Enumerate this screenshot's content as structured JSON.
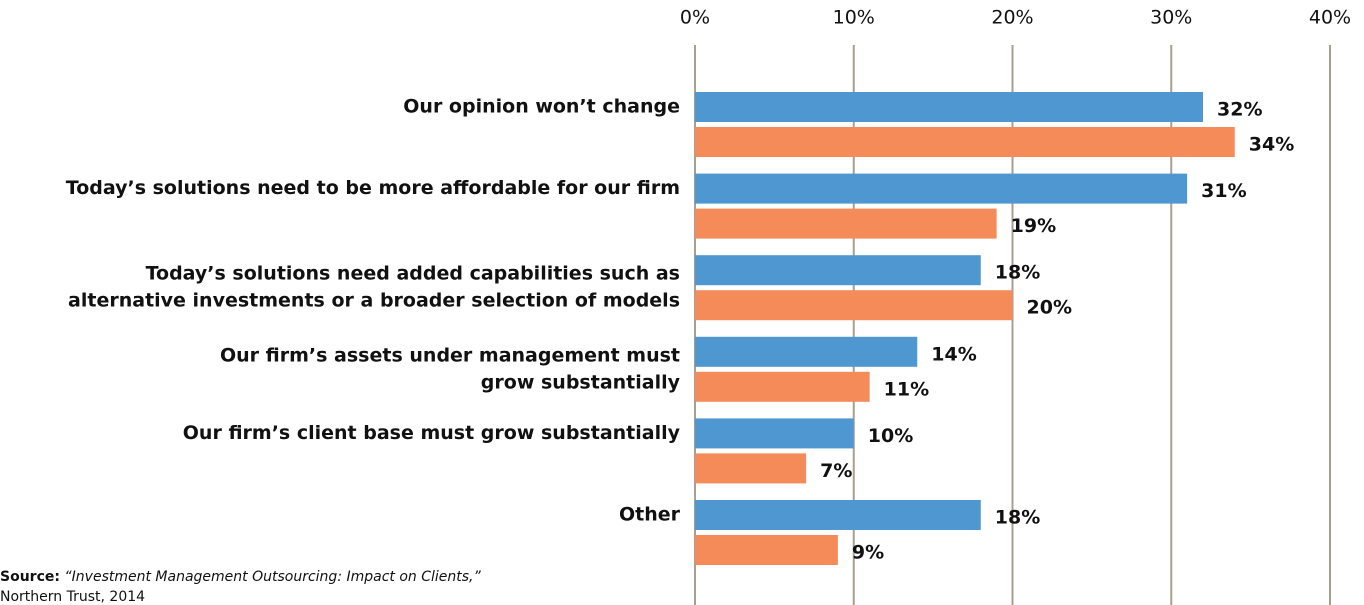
{
  "chart_data": {
    "type": "bar",
    "orientation": "horizontal",
    "categories": [
      [
        "Our opinion won’t change"
      ],
      [
        "Today’s solutions need to be more affordable for our firm"
      ],
      [
        "Today’s solutions need added capabilities such as",
        "alternative investments or a broader selection of models"
      ],
      [
        "Our firm’s assets under management must",
        "grow substantially"
      ],
      [
        "Our firm’s client base must grow substantially"
      ],
      [
        "Other"
      ]
    ],
    "series": [
      {
        "color": "#4f97d0",
        "values": [
          32,
          31,
          18,
          14,
          10,
          18
        ],
        "value_labels": [
          "32%",
          "31%",
          "18%",
          "14%",
          "10%",
          "18%"
        ]
      },
      {
        "color": "#f58b58",
        "values": [
          34,
          19,
          20,
          11,
          7,
          9
        ],
        "value_labels": [
          "34%",
          "19%",
          "20%",
          "11%",
          "7%",
          "9%"
        ]
      }
    ],
    "xlim": [
      0,
      40
    ],
    "xticks": [
      {
        "value": 0,
        "label": "0%"
      },
      {
        "value": 10,
        "label": "10%"
      },
      {
        "value": 20,
        "label": "20%"
      },
      {
        "value": 30,
        "label": "30%"
      },
      {
        "value": 40,
        "label": "40%"
      }
    ],
    "grid": true,
    "grid_color": "#a89f91",
    "source": {
      "label": "Source:",
      "title": "“Investment Management Outsourcing: Impact on Clients,”",
      "publisher": "Northern Trust, 2014"
    }
  }
}
